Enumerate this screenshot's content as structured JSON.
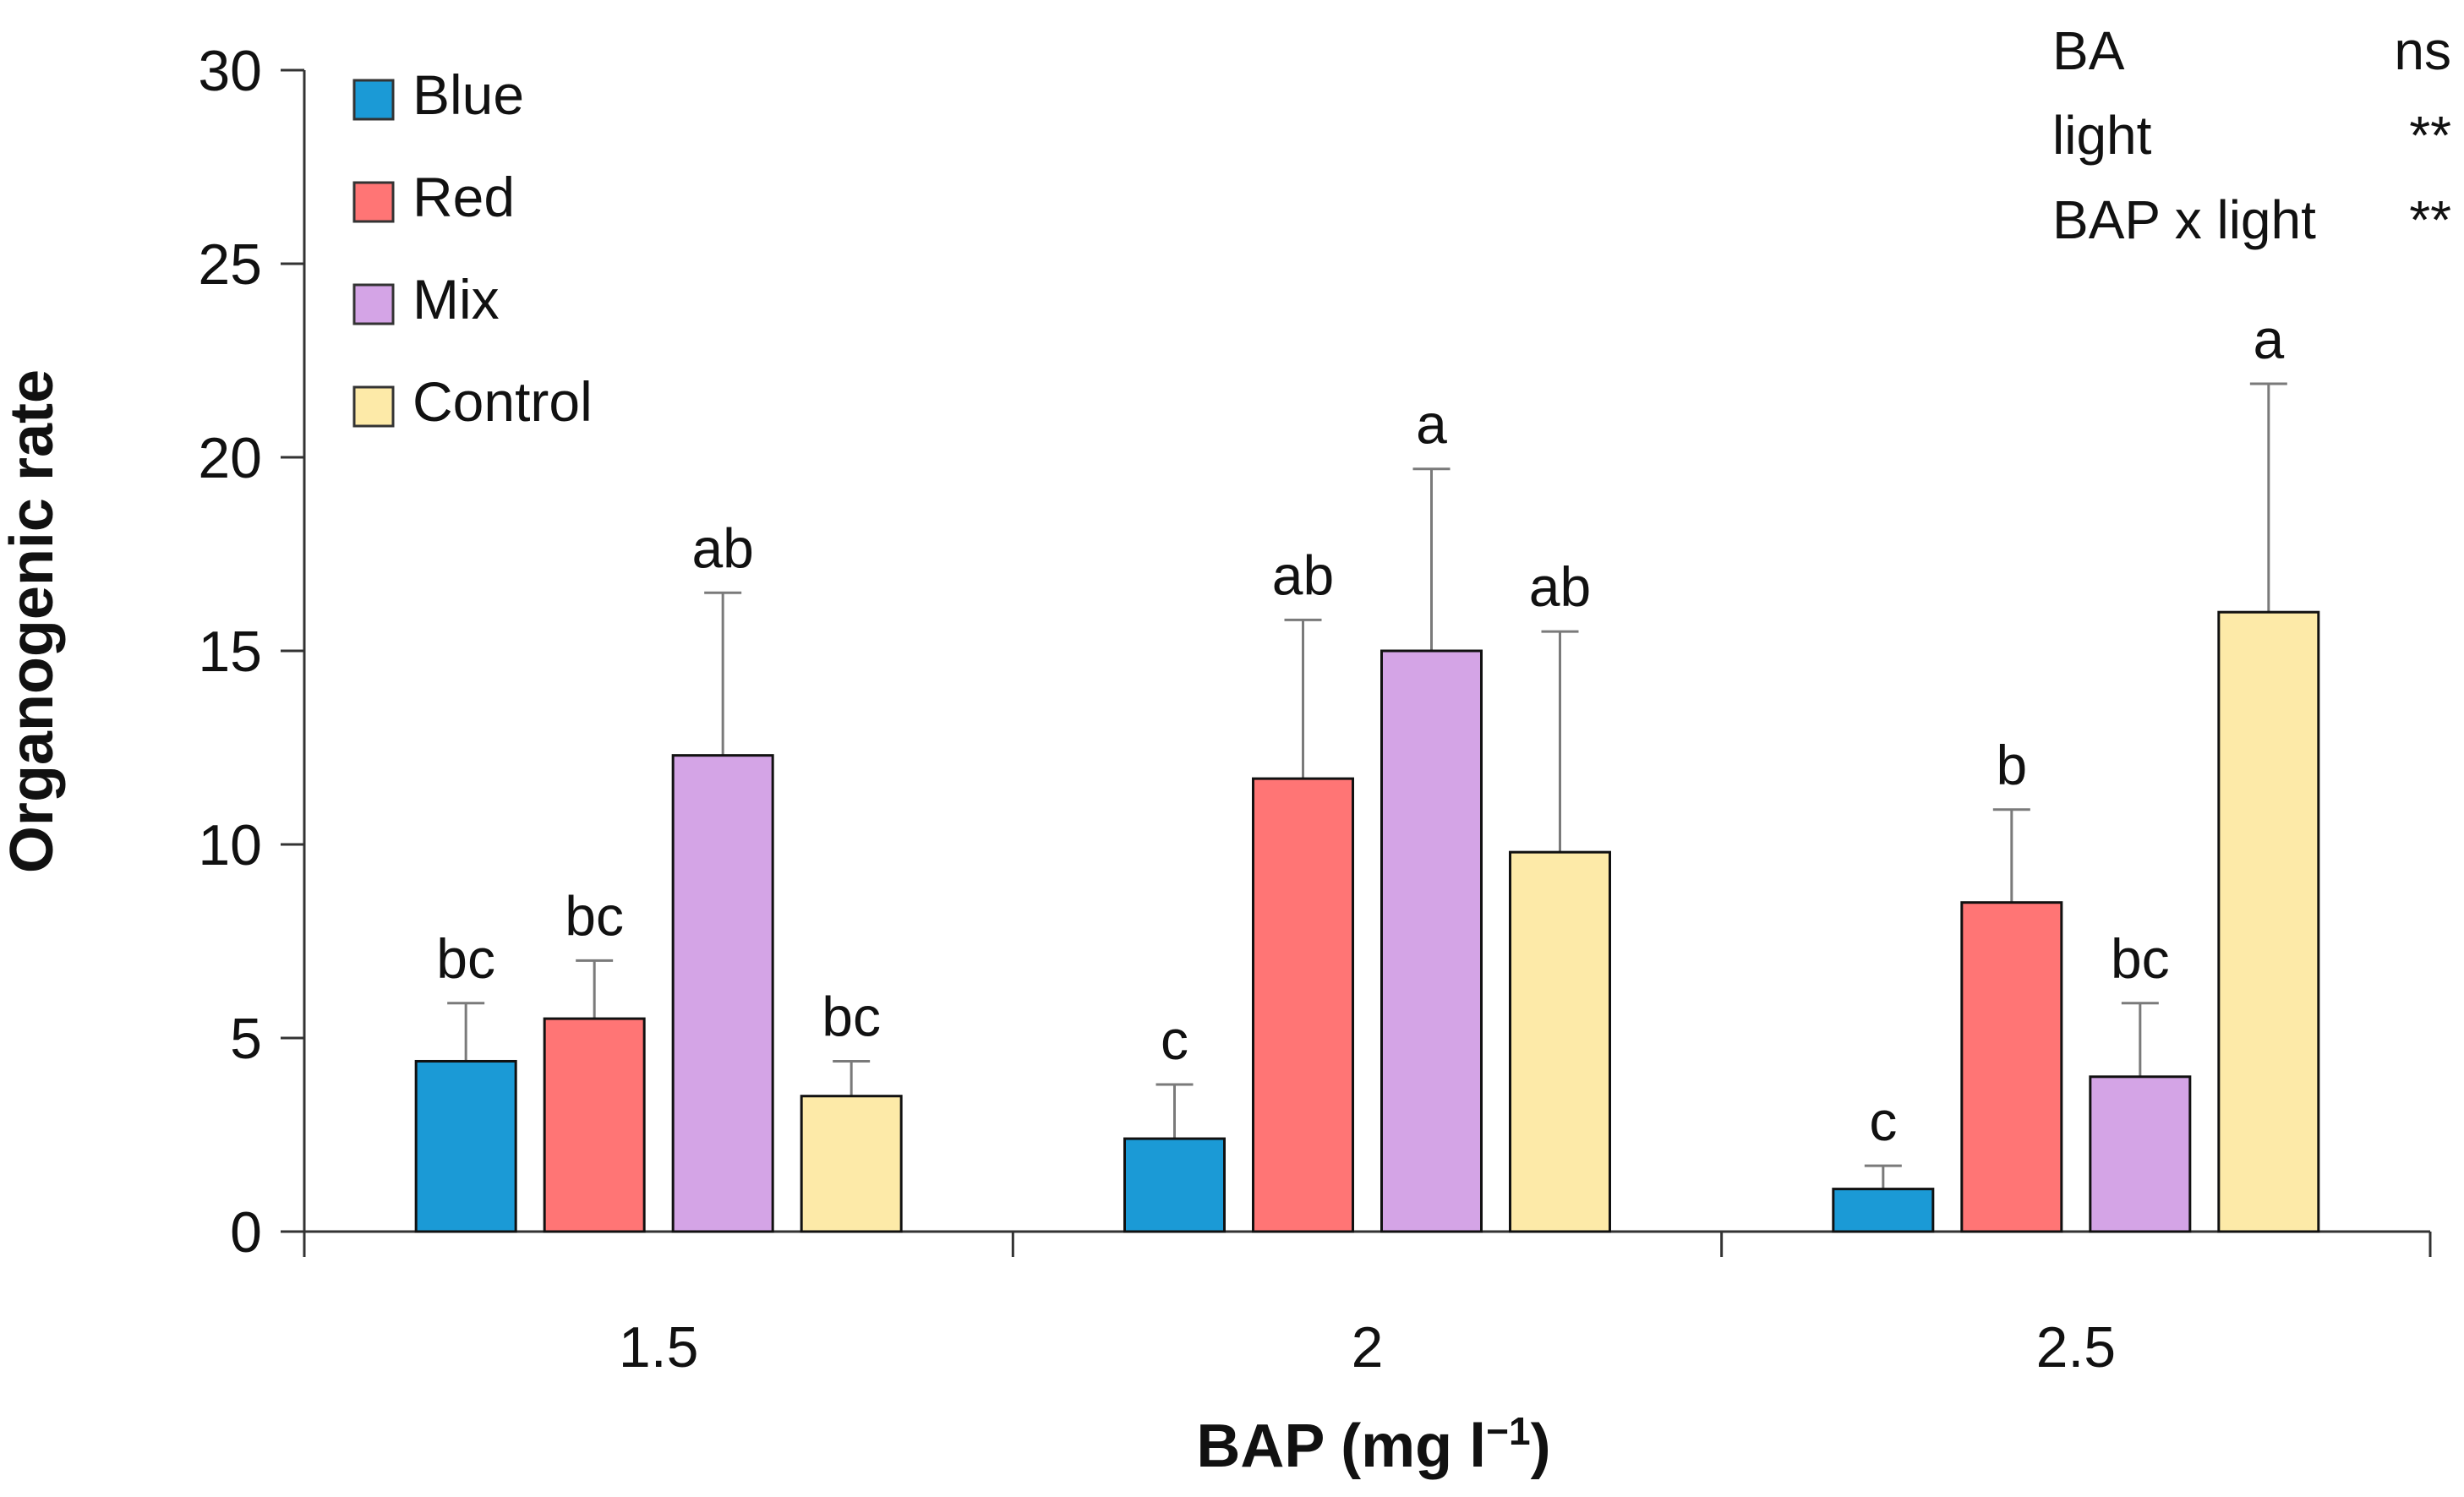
{
  "chart_data": {
    "type": "bar",
    "xlabel": "BAP (mg l",
    "xlabel_sup": "−1",
    "xlabel_close": ")",
    "ylabel": "Organogenic rate",
    "ylim": [
      0,
      30
    ],
    "yticks": [
      0,
      5,
      10,
      15,
      20,
      25,
      30
    ],
    "categories": [
      "1.5",
      "2",
      "2.5"
    ],
    "series": [
      {
        "name": "Blue",
        "color": "#1b9ad6",
        "values": [
          4.4,
          2.4,
          1.1
        ],
        "errors": [
          1.5,
          1.4,
          0.6
        ],
        "letters": [
          "bc",
          "c",
          "c"
        ]
      },
      {
        "name": "Red",
        "color": "#ff7575",
        "values": [
          5.5,
          11.7,
          8.5
        ],
        "errors": [
          1.5,
          4.1,
          2.4
        ],
        "letters": [
          "bc",
          "ab",
          "b"
        ]
      },
      {
        "name": "Mix",
        "color": "#d4a4e6",
        "values": [
          12.3,
          15.0,
          4.0
        ],
        "errors": [
          4.2,
          4.7,
          1.9
        ],
        "letters": [
          "ab",
          "a",
          "bc"
        ]
      },
      {
        "name": "Control",
        "color": "#fdeaa8",
        "values": [
          3.5,
          9.8,
          16.0
        ],
        "errors": [
          0.9,
          5.7,
          5.9
        ],
        "letters": [
          "bc",
          "ab",
          "a"
        ]
      }
    ],
    "legend_position": "top-left",
    "stats": [
      {
        "factor": "BA",
        "significance": "ns"
      },
      {
        "factor": "light",
        "significance": "**"
      },
      {
        "factor": "BAP x light",
        "significance": "**"
      }
    ]
  }
}
